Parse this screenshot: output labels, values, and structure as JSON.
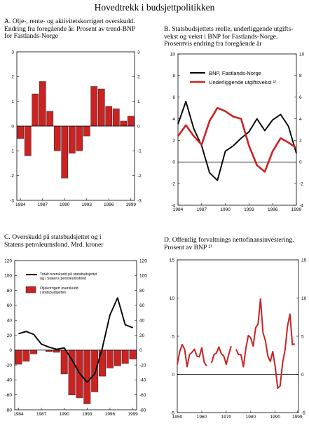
{
  "title": "Hovedtrekk i budsjettpolitikken",
  "panels": {
    "a": {
      "title_lines": [
        "A.  Olje-, rente- og aktivitetskorrigert overskudd.",
        "      Endring fra foregående år. Prosent av trend-BNP",
        "      for Fastlands-Norge"
      ]
    },
    "b": {
      "title_lines": [
        "B.   Statsbudsjettets reelle, underliggende utgifts-",
        "       vekst og vekst i BNP for Fastlands-Norge.",
        "       Prosentvis endring fra foregående år"
      ]
    },
    "c": {
      "title_lines": [
        "C.  Overskudd på statsbudsjettet og i",
        "      Statens petroleumsfond. Mrd.  kroner"
      ]
    },
    "d": {
      "title_lines": [
        "D.  Offentlig forvaltnings nettofinansinvestering.",
        "      Prosent av BNP ²⁾"
      ]
    }
  },
  "chart_data": [
    {
      "id": "a",
      "type": "bar",
      "title": "Olje-, rente- og aktivitetskorrigert overskudd. Endring fra foregående år. Prosent av trend-BNP for Fastlands-Norge",
      "categories": [
        1984,
        1985,
        1986,
        1987,
        1988,
        1989,
        1990,
        1991,
        1992,
        1993,
        1994,
        1995,
        1996,
        1997,
        1998,
        1999
      ],
      "values": [
        -0.5,
        -1.2,
        1.3,
        1.8,
        0.6,
        -1.0,
        -2.1,
        -1.1,
        -1.0,
        -0.4,
        1.6,
        1.5,
        0.8,
        0.7,
        0.2,
        0.4
      ],
      "ylim": [
        -3,
        3
      ],
      "yticks": [
        -3,
        -2,
        -1,
        0,
        1,
        2,
        3
      ],
      "xtick_labels": [
        "1984",
        "1987",
        "1990",
        "1993",
        "1996",
        "1999"
      ],
      "bar_color": "#cc2222"
    },
    {
      "id": "b",
      "type": "line",
      "title": "Statsbudsjettets reelle, underliggende utgiftsvekst og vekst i BNP for Fastlands-Norge. Prosentvis endring fra foregående år",
      "x": [
        1984,
        1985,
        1986,
        1987,
        1988,
        1989,
        1990,
        1991,
        1992,
        1993,
        1994,
        1995,
        1996,
        1997,
        1998,
        1999
      ],
      "series": [
        {
          "name": "BNP, Fastlands-Norge",
          "color": "#000000",
          "values": [
            3.5,
            5.6,
            3.1,
            1.5,
            -1.0,
            -1.7,
            1.0,
            1.5,
            2.2,
            2.8,
            4.0,
            2.9,
            3.9,
            4.4,
            3.3,
            0.8
          ]
        },
        {
          "name": "Underliggende utgiftsvekst ¹⁾",
          "color": "#cc2222",
          "values": [
            2.4,
            3.4,
            2.4,
            1.6,
            3.8,
            5.0,
            4.7,
            4.2,
            4.0,
            1.5,
            -0.3,
            -0.9,
            1.0,
            2.2,
            1.8,
            1.3
          ]
        }
      ],
      "ylim": [
        -4,
        10
      ],
      "yticks": [
        -4,
        -2,
        0,
        2,
        4,
        6,
        8,
        10
      ],
      "xtick_labels": [
        "1984",
        "1987",
        "1990",
        "1993",
        "1996",
        "1999"
      ]
    },
    {
      "id": "c",
      "type": "bar+line",
      "title": "Overskudd på statsbudsjettet og i Statens petroleumsfond. Mrd. kroner",
      "categories": [
        1984,
        1985,
        1986,
        1987,
        1988,
        1989,
        1990,
        1991,
        1992,
        1993,
        1994,
        1995,
        1996,
        1997,
        1998,
        1999
      ],
      "series": [
        {
          "name": "Totalt overskudd på statsbudsjettet og i Statens petroleumsfond",
          "type": "line",
          "color": "#000000",
          "values": [
            22,
            25,
            21,
            8,
            4,
            1,
            3,
            -13,
            -31,
            -43,
            -32,
            3,
            47,
            70,
            34,
            30
          ]
        },
        {
          "name": "Oljekorrigert overskudd i statsbudsjettet",
          "type": "bar",
          "color": "#cc2222",
          "values": [
            -19,
            -15,
            -5,
            0,
            -2,
            -3,
            -32,
            -60,
            -64,
            -72,
            -56,
            -35,
            -24,
            -21,
            -18,
            -12
          ]
        }
      ],
      "ylim": [
        -80,
        120
      ],
      "yticks": [
        -80,
        -60,
        -40,
        -20,
        0,
        20,
        40,
        60,
        80,
        100,
        120
      ],
      "xtick_labels": [
        "1984",
        "1987",
        "1990",
        "1993",
        "1996",
        "1999"
      ]
    },
    {
      "id": "d",
      "type": "line",
      "title": "Offentlig forvaltnings nettofinansinvestering. Prosent av BNP",
      "x_start": 1950,
      "series": [
        {
          "name": "Nettofinansinvestering",
          "color": "#cc2222",
          "segments": [
            {
              "start": 1950,
              "values": [
                1.3,
                3.0,
                3.9,
                3.3,
                1.0,
                2.6,
                2.9,
                3.3,
                2.4,
                2.3,
                3.5,
                1.6,
                1.1
              ]
            },
            {
              "start": 1964,
              "values": [
                1.5,
                2.6,
                2.8,
                3.6,
                2.7,
                2.4,
                1.3,
                2.6,
                3.7
              ]
            },
            {
              "start": 1974,
              "values": [
                3.3,
                2.6,
                2.6,
                1.0,
                3.4,
                5.1,
                4.8,
                3.7,
                6.1,
                6.6,
                9.9,
                5.5,
                4.4,
                2.4,
                1.7,
                3.0,
                1.0,
                -1.8,
                -1.5,
                1.5,
                3.2,
                6.3,
                7.9,
                3.9,
                4.0
              ]
            }
          ]
        }
      ],
      "ylim": [
        -5,
        15
      ],
      "yticks": [
        -5,
        0,
        5,
        10,
        15
      ],
      "xtick_labels": [
        "1950",
        "1960",
        "1970",
        "1980",
        "1990",
        "1999"
      ],
      "xtick_values": [
        1950,
        1960,
        1970,
        1980,
        1990,
        1999
      ]
    }
  ]
}
